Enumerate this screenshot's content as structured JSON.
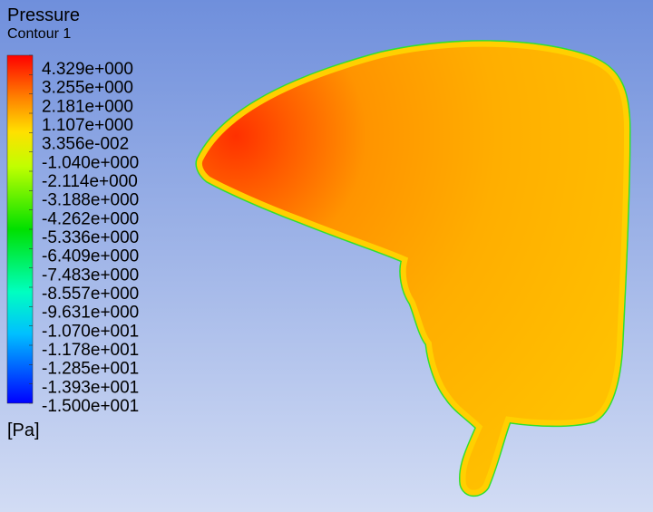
{
  "title": "Pressure",
  "subtitle": "Contour 1",
  "legend": {
    "labels": [
      "4.329e+000",
      "3.255e+000",
      "2.181e+000",
      "1.107e+000",
      "3.356e-002",
      "-1.040e+000",
      "-2.114e+000",
      "-3.188e+000",
      "-4.262e+000",
      "-5.336e+000",
      "-6.409e+000",
      "-7.483e+000",
      "-8.557e+000",
      "-9.631e+000",
      "-1.070e+001",
      "-1.178e+001",
      "-1.285e+001",
      "-1.393e+001",
      "-1.500e+001"
    ],
    "unit": "[Pa]"
  }
}
